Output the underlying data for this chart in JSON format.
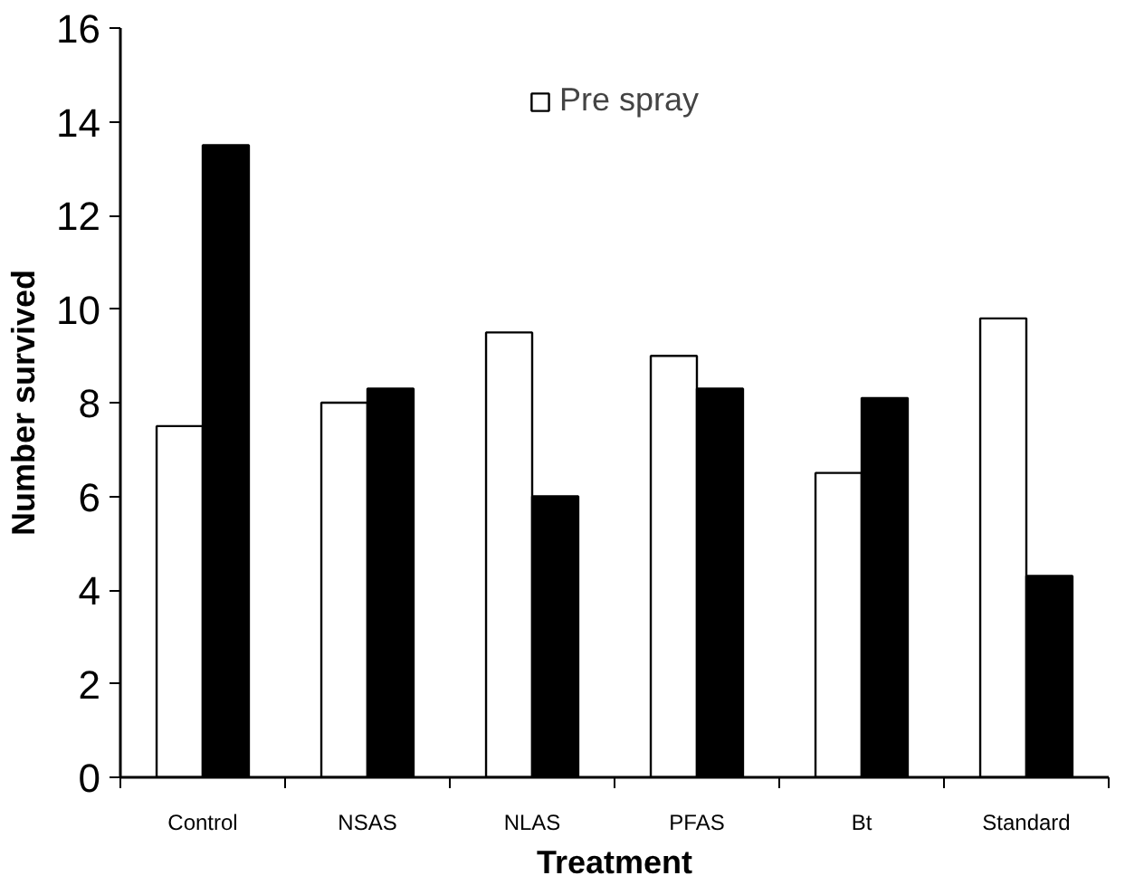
{
  "chart_data": {
    "type": "bar",
    "xlabel": "Treatment",
    "ylabel": "Number survived",
    "categories": [
      "Control",
      "NSAS",
      "NLAS",
      "PFAS",
      "Bt",
      "Standard"
    ],
    "series": [
      {
        "name": "Pre spray",
        "color": "#ffffff",
        "values": [
          7.5,
          8,
          9.5,
          9,
          6.5,
          9.8
        ]
      },
      {
        "color": "#000000",
        "values": [
          13.5,
          8.3,
          6.0,
          8.3,
          8.1,
          4.3
        ]
      }
    ],
    "ylim": [
      0,
      16
    ],
    "yticks": [
      0,
      2,
      4,
      6,
      8,
      10,
      12,
      14,
      16
    ],
    "grid": false,
    "legend": "top"
  }
}
